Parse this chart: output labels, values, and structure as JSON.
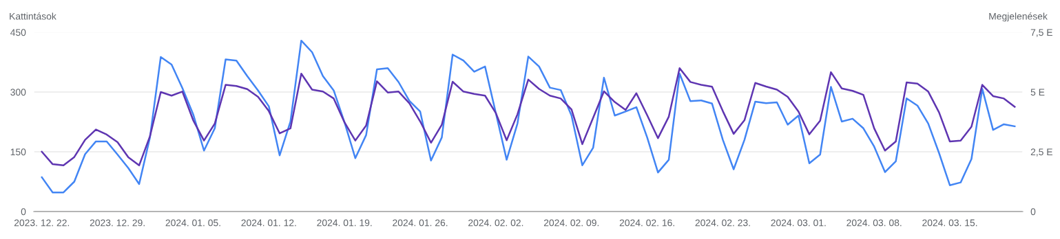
{
  "chart_data": {
    "type": "line",
    "ylabel": "Kattintások",
    "y2label": "Megjelenések",
    "x": [
      "2023-12-22",
      "2023-12-23",
      "2023-12-24",
      "2023-12-25",
      "2023-12-26",
      "2023-12-27",
      "2023-12-28",
      "2023-12-29",
      "2023-12-30",
      "2023-12-31",
      "2024-01-01",
      "2024-01-02",
      "2024-01-03",
      "2024-01-04",
      "2024-01-05",
      "2024-01-06",
      "2024-01-07",
      "2024-01-08",
      "2024-01-09",
      "2024-01-10",
      "2024-01-11",
      "2024-01-12",
      "2024-01-13",
      "2024-01-14",
      "2024-01-15",
      "2024-01-16",
      "2024-01-17",
      "2024-01-18",
      "2024-01-19",
      "2024-01-20",
      "2024-01-21",
      "2024-01-22",
      "2024-01-23",
      "2024-01-24",
      "2024-01-25",
      "2024-01-26",
      "2024-01-27",
      "2024-01-28",
      "2024-01-29",
      "2024-01-30",
      "2024-01-31",
      "2024-02-01",
      "2024-02-02",
      "2024-02-03",
      "2024-02-04",
      "2024-02-05",
      "2024-02-06",
      "2024-02-07",
      "2024-02-08",
      "2024-02-09",
      "2024-02-10",
      "2024-02-11",
      "2024-02-12",
      "2024-02-13",
      "2024-02-14",
      "2024-02-15",
      "2024-02-16",
      "2024-02-17",
      "2024-02-18",
      "2024-02-19",
      "2024-02-20",
      "2024-02-21",
      "2024-02-22",
      "2024-02-23",
      "2024-02-24",
      "2024-02-25",
      "2024-02-26",
      "2024-02-27",
      "2024-02-28",
      "2024-02-29",
      "2024-03-01",
      "2024-03-02",
      "2024-03-03",
      "2024-03-04",
      "2024-03-05",
      "2024-03-06",
      "2024-03-07",
      "2024-03-08",
      "2024-03-09",
      "2024-03-10",
      "2024-03-11",
      "2024-03-12",
      "2024-03-13",
      "2024-03-14",
      "2024-03-15",
      "2024-03-16",
      "2024-03-17",
      "2024-03-18",
      "2024-03-19",
      "2024-03-20",
      "2024-03-21"
    ],
    "series": [
      {
        "color": "#4285f4",
        "values": [
          86,
          48,
          48,
          75,
          144,
          176,
          176,
          143,
          109,
          69,
          186,
          388,
          369,
          310,
          244,
          153,
          209,
          382,
          379,
          340,
          304,
          264,
          141,
          226,
          429,
          400,
          340,
          304,
          224,
          134,
          192,
          357,
          360,
          325,
          278,
          251,
          128,
          186,
          394,
          379,
          351,
          364,
          247,
          130,
          221,
          389,
          364,
          311,
          305,
          241,
          116,
          160,
          336,
          241,
          251,
          262,
          186,
          98,
          130,
          346,
          277,
          279,
          271,
          180,
          106,
          180,
          276,
          272,
          274,
          218,
          241,
          121,
          143,
          313,
          226,
          233,
          209,
          163,
          99,
          126,
          284,
          266,
          221,
          147,
          66,
          73,
          132,
          308,
          205,
          219,
          214
        ]
      },
      {
        "color": "#5e35b1",
        "axis": "y2",
        "values": [
          2.5,
          1.98,
          1.93,
          2.28,
          3.0,
          3.43,
          3.22,
          2.9,
          2.27,
          1.93,
          3.15,
          5.0,
          4.85,
          5.02,
          3.82,
          2.97,
          3.68,
          5.3,
          5.25,
          5.12,
          4.8,
          4.2,
          3.27,
          3.48,
          5.77,
          5.1,
          5.02,
          4.73,
          3.73,
          2.97,
          3.6,
          5.45,
          4.98,
          5.02,
          4.53,
          3.77,
          2.88,
          3.63,
          5.43,
          5.02,
          4.92,
          4.85,
          4.12,
          2.98,
          4.07,
          5.52,
          5.13,
          4.85,
          4.73,
          4.27,
          2.82,
          3.92,
          5.03,
          4.58,
          4.25,
          4.95,
          4.03,
          3.07,
          3.97,
          6.0,
          5.42,
          5.3,
          5.22,
          4.2,
          3.25,
          3.82,
          5.38,
          5.23,
          5.1,
          4.8,
          4.18,
          3.23,
          3.8,
          5.83,
          5.15,
          5.05,
          4.88,
          3.48,
          2.55,
          2.93,
          5.4,
          5.35,
          5.02,
          4.15,
          2.93,
          2.97,
          3.55,
          5.3,
          4.83,
          4.73,
          4.38
        ]
      }
    ],
    "xlim": [
      "2023-12-21T06:00",
      "2024-03-21T18:00"
    ],
    "xticks": [
      {
        "value": "2023-12-22",
        "label": "2023. 12. 22."
      },
      {
        "value": "2023-12-29",
        "label": "2023. 12. 29."
      },
      {
        "value": "2024-01-05",
        "label": "2024. 01. 05."
      },
      {
        "value": "2024-01-12",
        "label": "2024. 01. 12."
      },
      {
        "value": "2024-01-19",
        "label": "2024. 01. 19."
      },
      {
        "value": "2024-01-26",
        "label": "2024. 01. 26."
      },
      {
        "value": "2024-02-02",
        "label": "2024. 02. 02."
      },
      {
        "value": "2024-02-09",
        "label": "2024. 02. 09."
      },
      {
        "value": "2024-02-16",
        "label": "2024. 02. 16."
      },
      {
        "value": "2024-02-23",
        "label": "2024. 02. 23."
      },
      {
        "value": "2024-03-01",
        "label": "2024. 03. 01."
      },
      {
        "value": "2024-03-08",
        "label": "2024. 03. 08."
      },
      {
        "value": "2024-03-15",
        "label": "2024. 03. 15."
      }
    ],
    "ylim": [
      0,
      450
    ],
    "yticks": [
      0,
      150,
      300,
      450
    ],
    "y2lim": [
      0,
      7.5
    ],
    "y2ticks": [
      0,
      {
        "value": 2.5,
        "label": "2,5 E"
      },
      {
        "value": 5,
        "label": "5 E"
      },
      {
        "value": 7.5,
        "label": "7,5 E"
      }
    ],
    "grid": "y",
    "legend": false,
    "marker": "none",
    "line_style": "solid"
  }
}
